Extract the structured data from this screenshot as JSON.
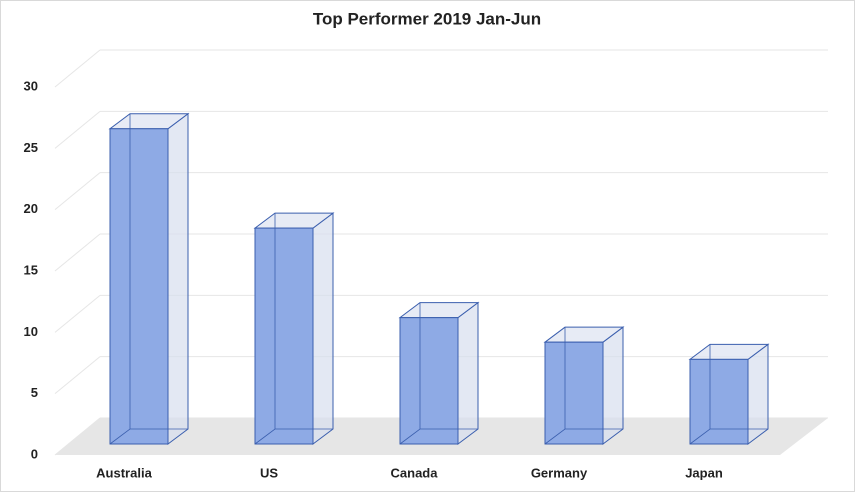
{
  "chart_data": {
    "type": "bar3d",
    "title": "Top Performer 2019 Jan-Jun",
    "categories": [
      "Australia",
      "US",
      "Canada",
      "Germany",
      "Japan"
    ],
    "values": [
      25.7,
      17.6,
      10.3,
      8.3,
      6.9
    ],
    "color": "#8eaae5",
    "ylim": [
      0,
      30
    ],
    "yticks": [
      0,
      5,
      10,
      15,
      20,
      25,
      30
    ],
    "grid": true
  }
}
